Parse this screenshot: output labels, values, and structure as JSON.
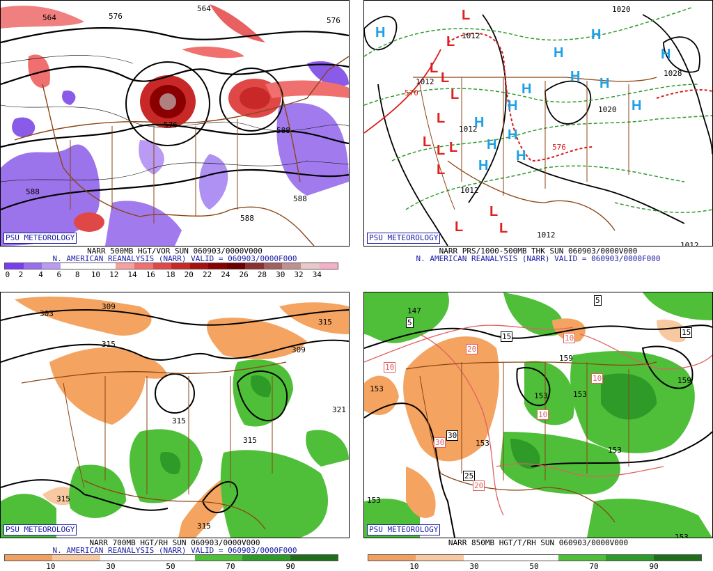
{
  "badge": "PSU METEOROLOGY",
  "panels": {
    "p500": {
      "caption1": "NARR 500MB HGT/VOR SUN 060903/0000V000",
      "caption2": "N. AMERICAN REANALYSIS (NARR) VALID = 060903/0000F000",
      "ticks": [
        "0",
        "2",
        "4",
        "6",
        "8",
        "10",
        "12",
        "14",
        "16",
        "18",
        "20",
        "22",
        "24",
        "26",
        "28",
        "30",
        "32",
        "34"
      ],
      "contour_labels": [
        "564",
        "576",
        "564",
        "576",
        "588",
        "588",
        "576",
        "588",
        "588"
      ]
    },
    "psfc": {
      "caption1": "NARR PRS/1000-500MB THK SUN 060903/0000V000",
      "caption2": "N. AMERICAN REANALYSIS (NARR) VALID = 060903/0000F000",
      "contour_labels": [
        "1012",
        "1020",
        "1028",
        "1012",
        "1012",
        "1012",
        "1020",
        "570",
        "576",
        "1012",
        "1012"
      ],
      "high_symbol": "H",
      "low_symbol": "L"
    },
    "p700": {
      "caption1": "NARR 700MB HGT/RH SUN 060903/0000V000",
      "caption2": "N. AMERICAN REANALYSIS (NARR) VALID = 060903/0000F000",
      "ticks": [
        "10",
        "30",
        "50",
        "70",
        "90"
      ],
      "contour_labels": [
        "309",
        "303",
        "315",
        "315",
        "315",
        "315",
        "315",
        "321",
        "309",
        "315"
      ]
    },
    "p850": {
      "caption1": "NARR 850MB HGT/T/RH SUN 060903/0000V000",
      "ticks": [
        "10",
        "30",
        "50",
        "70",
        "90"
      ],
      "contour_labels": [
        "147",
        "153",
        "159",
        "153",
        "153",
        "153",
        "153",
        "159",
        "153",
        "153"
      ],
      "temp_labels": [
        "5",
        "10",
        "15",
        "20",
        "30",
        "30",
        "25",
        "20",
        "10",
        "10",
        "5",
        "10",
        "15"
      ]
    }
  },
  "colors": {
    "vor_scale": [
      "#7a3cf0",
      "#9a6cf0",
      "#b99bf5",
      "#ffffff",
      "#ffffff",
      "#ffffff",
      "#f7a0a0",
      "#f07070",
      "#e04848",
      "#c82828",
      "#a81010",
      "#8a0000",
      "#6a0000",
      "#8a3030",
      "#a06060",
      "#c09090",
      "#e8c8c8",
      "#f5b0c8"
    ],
    "rh_scale": [
      "#f0a060",
      "#f8c8a0",
      "#ffffff",
      "#ffffff",
      "#4fbf3a",
      "#2e9a28",
      "#1f6f1a"
    ],
    "map_lines": "#8b4513"
  }
}
